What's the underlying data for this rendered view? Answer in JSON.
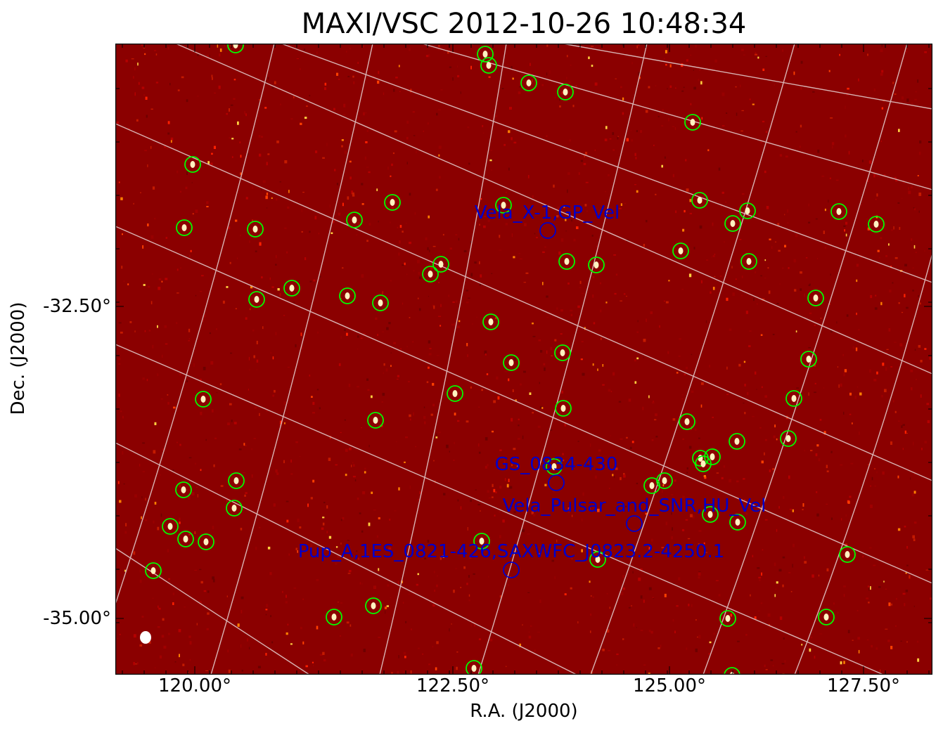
{
  "title": "MAXI/VSC 2012-10-26 10:48:34",
  "axes": {
    "xlabel": "R.A. (J2000)",
    "ylabel": "Dec. (J2000)",
    "xticks": [
      "120.00°",
      "122.50°",
      "125.00°",
      "127.50°"
    ],
    "yticks": [
      "-32.50°",
      "-35.00°"
    ]
  },
  "colors": {
    "background": "#8b0000",
    "grid": "#d9b3b3",
    "catalog_circle": "#00ff00",
    "target_circle": "#0000cc",
    "target_label": "#0000cc"
  },
  "targets": [
    {
      "label": "Vela_X-1,GP_Vel"
    },
    {
      "label": "GS_0834-430"
    },
    {
      "label": "Vela_Pulsar_and_SNR,HU_Vel"
    },
    {
      "label": "Pup_A,1ES_0821-426,SAXWFC_J0823.2-4250.1"
    }
  ]
}
